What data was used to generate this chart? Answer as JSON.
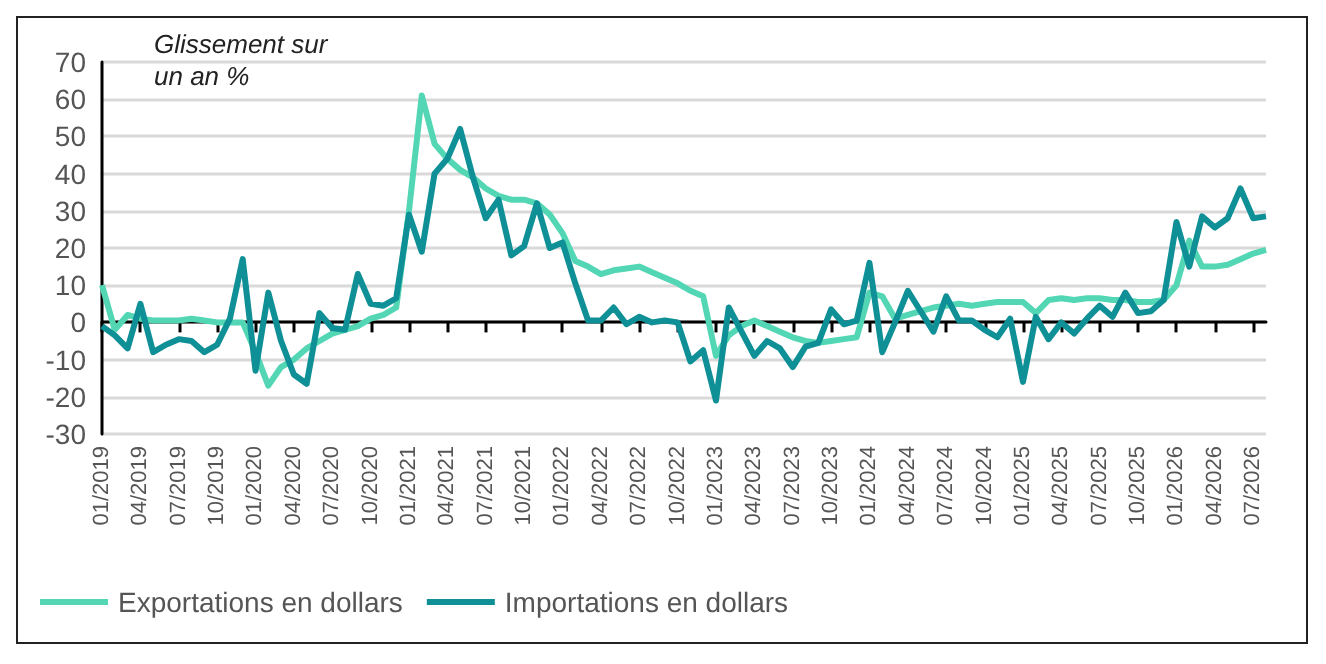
{
  "chart_data": {
    "type": "line",
    "ylabel": "Glissement sur un an %",
    "categories": [
      "01/2019",
      null,
      null,
      "04/2019",
      null,
      null,
      "07/2019",
      null,
      null,
      "10/2019",
      null,
      null,
      "01/2020",
      null,
      null,
      "04/2020",
      null,
      null,
      "07/2020",
      null,
      null,
      "10/2020",
      null,
      null,
      "01/2021",
      null,
      null,
      "04/2021",
      null,
      null,
      "07/2021",
      null,
      null,
      "10/2021",
      null,
      null,
      "01/2022",
      null,
      null,
      "04/2022",
      null,
      null,
      "07/2022",
      null,
      null,
      "10/2022",
      null,
      null,
      "01/2023",
      null,
      null,
      "04/2023",
      null,
      null,
      "07/2023",
      null,
      null,
      "10/2023",
      null,
      null,
      "01/2024",
      null,
      null,
      "04/2024",
      null,
      null,
      "07/2024",
      null,
      null,
      "10/2024",
      null,
      null,
      "01/2025",
      null,
      null,
      "04/2025",
      null,
      null,
      "07/2025",
      null,
      null,
      "10/2025",
      null,
      null,
      "01/2026",
      null,
      null,
      "04/2026",
      null,
      null,
      "07/2026",
      null
    ],
    "series": [
      {
        "name": "Exportations en dollars",
        "color": "#52d6b4",
        "values": [
          10,
          -2,
          2,
          1,
          0.5,
          0.5,
          0.5,
          1,
          0.5,
          0,
          0,
          0,
          -8,
          -17,
          -12,
          -10,
          -7,
          -5,
          -3,
          -2,
          -1,
          1,
          2,
          4,
          30,
          61,
          48,
          44,
          41,
          39,
          36,
          34,
          33,
          33,
          32,
          29,
          24,
          16.5,
          15,
          13,
          14,
          14.5,
          15,
          13.5,
          12,
          10.5,
          8.5,
          7,
          -9,
          -3.5,
          -1,
          0.5,
          -1,
          -2.5,
          -4,
          -5,
          -5.5,
          -5,
          -4.5,
          -4,
          8,
          7,
          1,
          2,
          3,
          4,
          4.5,
          5,
          4.5,
          5,
          5.5,
          5.5,
          5.5,
          2.5,
          6,
          6.5,
          6,
          6.5,
          6.5,
          6,
          6,
          5.5,
          5.5,
          6,
          10,
          22,
          15,
          15,
          15.5,
          17,
          18.5,
          19.5
        ]
      },
      {
        "name": "Importations en dollars",
        "color": "#0f8f96",
        "values": [
          -1,
          -3.5,
          -7,
          5,
          -8,
          -6,
          -4.5,
          -5,
          -8,
          -6,
          1,
          17,
          -13,
          8,
          -5,
          -14,
          -16.5,
          2.5,
          -1.5,
          -2,
          13,
          5,
          4.5,
          6.5,
          29,
          19,
          40,
          44,
          52,
          39,
          28,
          33,
          18,
          20.5,
          32,
          20,
          21.5,
          10.5,
          0.5,
          0.5,
          4,
          -0.5,
          1.5,
          0,
          0.5,
          0,
          -10.5,
          -7.5,
          -21,
          4,
          -2.5,
          -9,
          -5,
          -7,
          -12,
          -6.5,
          -5.5,
          3.5,
          -0.5,
          0.5,
          16,
          -8,
          0,
          8.5,
          3,
          -2.5,
          7,
          0.5,
          0.5,
          -2,
          -4,
          1,
          -16,
          1.5,
          -4.5,
          0,
          -3,
          1,
          4.5,
          1.5,
          8,
          2.5,
          3,
          6,
          27,
          15,
          28.5,
          25.5,
          28,
          36,
          28,
          28.5
        ]
      }
    ],
    "ylim": [
      -30,
      70
    ],
    "yticks": [
      -30,
      -20,
      -10,
      0,
      10,
      20,
      30,
      40,
      50,
      60,
      70
    ],
    "grid": "y",
    "legend": "bottom left",
    "marker": "none",
    "line_style": "solid"
  }
}
